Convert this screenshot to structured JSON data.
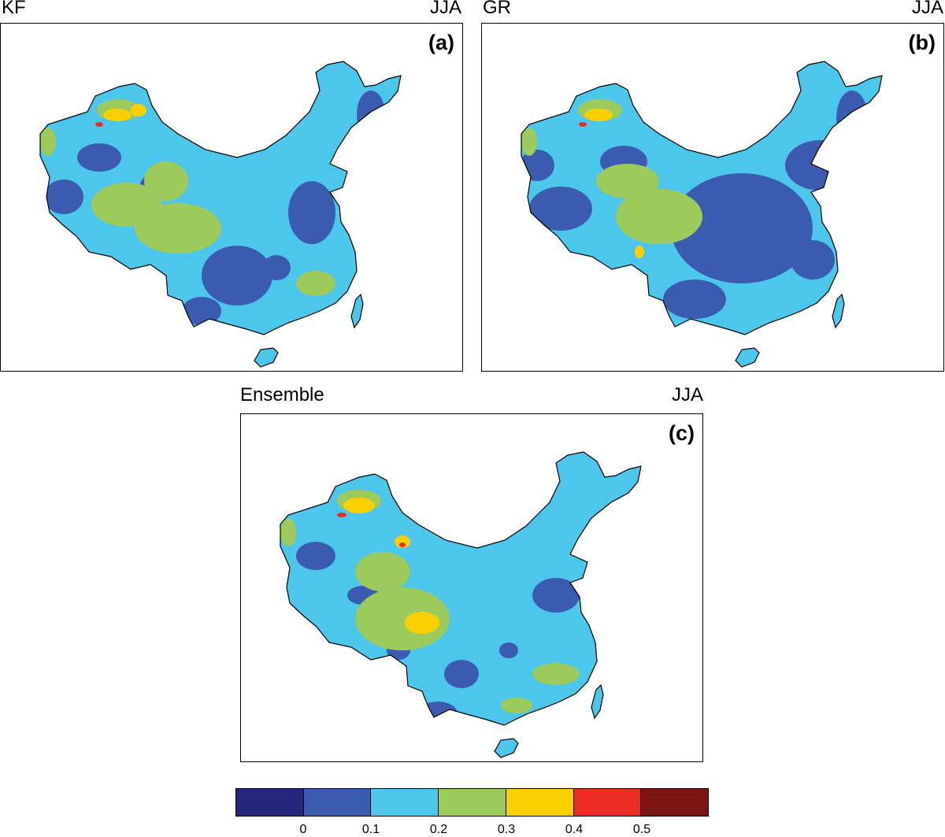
{
  "panels": [
    {
      "title_left": "KF",
      "title_right": "JJA",
      "label": "(a)"
    },
    {
      "title_left": "GR",
      "title_right": "JJA",
      "label": "(b)"
    },
    {
      "title_left": "Ensemble",
      "title_right": "JJA",
      "label": "(c)"
    }
  ],
  "colorbar": {
    "colors": [
      "#25287a",
      "#3a5bb0",
      "#4dc6ec",
      "#9ccb5c",
      "#fcd000",
      "#ec2b25",
      "#7d1514"
    ],
    "ticks": [
      "0",
      "0.1",
      "0.2",
      "0.3",
      "0.4",
      "0.5"
    ]
  },
  "palette": {
    "dark_blue": "#3a5bb0",
    "light_blue": "#4dc6ec",
    "green": "#9ccb5c",
    "yellow": "#fcd000",
    "red": "#ec2b25"
  }
}
